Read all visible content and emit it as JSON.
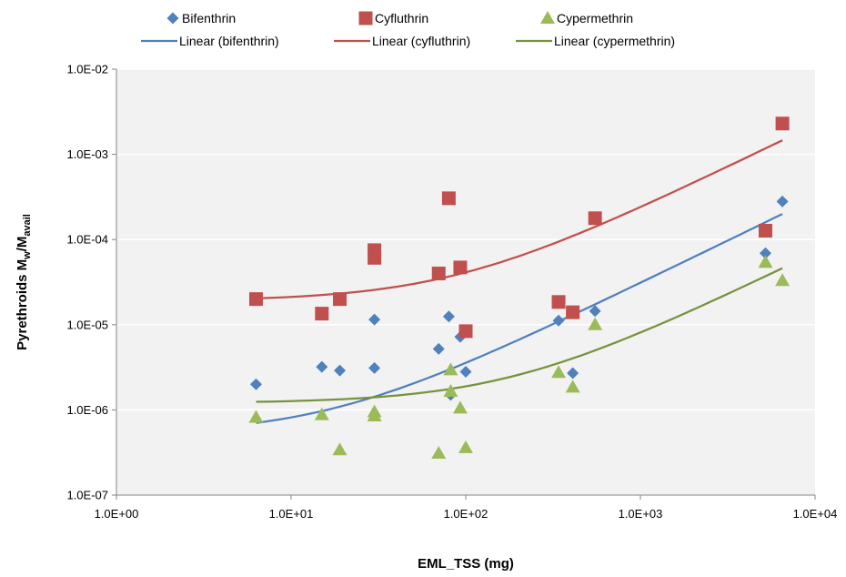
{
  "chart_data": {
    "type": "scatter",
    "xlabel": "EML_TSS (mg)",
    "ylabel": {
      "main": "Pyrethroids M",
      "sub1": "w",
      "mid": "/M",
      "sub2": "avail"
    },
    "x_scale": "log",
    "y_scale": "log",
    "xlim": [
      1,
      10000
    ],
    "ylim": [
      1e-07,
      0.01
    ],
    "x_ticks": [
      {
        "value": 1,
        "label": "1.0E+00"
      },
      {
        "value": 10,
        "label": "1.0E+01"
      },
      {
        "value": 100,
        "label": "1.0E+02"
      },
      {
        "value": 1000,
        "label": "1.0E+03"
      },
      {
        "value": 10000,
        "label": "1.0E+04"
      }
    ],
    "y_ticks": [
      {
        "value": 1e-07,
        "label": "1.0E-07"
      },
      {
        "value": 1e-06,
        "label": "1.0E-06"
      },
      {
        "value": 1e-05,
        "label": "1.0E-05"
      },
      {
        "value": 0.0001,
        "label": "1.0E-04"
      },
      {
        "value": 0.001,
        "label": "1.0E-03"
      },
      {
        "value": 0.01,
        "label": "1.0E-02"
      }
    ],
    "grid": {
      "horizontal": true,
      "vertical": false
    },
    "plot_background": "#f2f2f2",
    "legend_position": "top",
    "series": [
      {
        "name": "Bifenthrin",
        "marker": "diamond",
        "color": "#4f81bd",
        "x": [
          6.3,
          15,
          19,
          30,
          30,
          70,
          80,
          82,
          93,
          100,
          340,
          410,
          550,
          5200,
          6500
        ],
        "y": [
          2e-06,
          3.2e-06,
          2.9e-06,
          1.15e-05,
          3.1e-06,
          5.2e-06,
          1.25e-05,
          1.5e-06,
          7.2e-06,
          2.8e-06,
          1.12e-05,
          2.7e-06,
          1.45e-05,
          6.9e-05,
          0.00028
        ]
      },
      {
        "name": "Cyfluthrin",
        "marker": "square",
        "color": "#c0504d",
        "x": [
          6.3,
          15,
          19,
          30,
          30,
          70,
          80,
          93,
          100,
          340,
          410,
          550,
          5200,
          6500
        ],
        "y": [
          2e-05,
          1.35e-05,
          2e-05,
          7.5e-05,
          6.1e-05,
          4e-05,
          0.000305,
          4.7e-05,
          8.4e-06,
          1.85e-05,
          1.4e-05,
          0.000178,
          0.000127,
          0.0023
        ]
      },
      {
        "name": "Cypermethrin",
        "marker": "triangle",
        "color": "#9bbb59",
        "x": [
          6.3,
          15,
          19,
          30,
          30,
          70,
          82,
          82,
          93,
          100,
          340,
          410,
          550,
          5200,
          6500
        ],
        "y": [
          8.2e-07,
          8.8e-07,
          3.4e-07,
          8.5e-07,
          9.5e-07,
          3.1e-07,
          2.95e-06,
          1.65e-06,
          1.05e-06,
          3.6e-07,
          2.75e-06,
          1.85e-06,
          1e-05,
          5.4e-05,
          3.3e-05
        ]
      }
    ],
    "trendlines": [
      {
        "name": "Linear (bifenthrin)",
        "color": "#4f81bd",
        "fit": "linear",
        "slope": 3.06e-08,
        "intercept": 5.1e-07
      },
      {
        "name": "Linear (cyfluthrin)",
        "color": "#c0504d",
        "fit": "linear",
        "slope": 2.22e-07,
        "intercept": 1.9e-05
      },
      {
        "name": "Linear (cypermethrin)",
        "color": "#77933c",
        "fit": "linear",
        "slope": 6.9e-09,
        "intercept": 1.2e-06
      }
    ]
  }
}
